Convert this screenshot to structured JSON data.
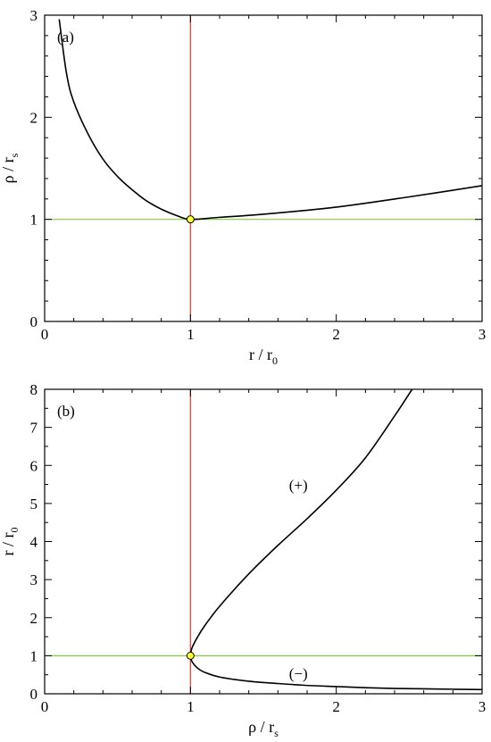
{
  "chart_data": [
    {
      "type": "line",
      "panel_label": "(a)",
      "xlabel": "r / r",
      "xlabel_sub": "0",
      "ylabel": "ρ / r",
      "ylabel_sub": "s",
      "xlim": [
        0,
        3
      ],
      "ylim": [
        0,
        3
      ],
      "xticks": [
        0,
        1,
        2,
        3
      ],
      "yticks": [
        0,
        1,
        2,
        3
      ],
      "colors": {
        "curve": "#000000",
        "horizontal": "#7fd13b",
        "vertical": "#e03c28",
        "marker": "#ffff33"
      },
      "series": [
        {
          "x": [
            0.1,
            0.15,
            0.2,
            0.3,
            0.4,
            0.5,
            0.6,
            0.7,
            0.8,
            0.9,
            1.0,
            1.2,
            1.5,
            2.0,
            2.5,
            3.0
          ],
          "y": [
            2.96,
            2.43,
            2.15,
            1.83,
            1.59,
            1.42,
            1.29,
            1.18,
            1.1,
            1.04,
            1.0,
            1.02,
            1.05,
            1.12,
            1.22,
            1.33
          ]
        }
      ],
      "hlines": [
        1
      ],
      "vlines": [
        1
      ],
      "points": [
        {
          "x": 1,
          "y": 1
        }
      ]
    },
    {
      "type": "line",
      "panel_label": "(b)",
      "xlabel": "ρ / r",
      "xlabel_sub": "s",
      "ylabel": "r / r",
      "ylabel_sub": "0",
      "xlim": [
        0,
        3
      ],
      "ylim": [
        0,
        8
      ],
      "xticks": [
        0,
        1,
        2,
        3
      ],
      "yticks": [
        0,
        1,
        2,
        3,
        4,
        5,
        6,
        7,
        8
      ],
      "colors": {
        "curve": "#000000",
        "horizontal": "#7fd13b",
        "vertical": "#e03c28",
        "marker": "#ffff33"
      },
      "series": [
        {
          "name": "(+)",
          "x": [
            1.0,
            1.01,
            1.05,
            1.1,
            1.2,
            1.4,
            1.6,
            1.8,
            2.0,
            2.2,
            2.4,
            2.52
          ],
          "y": [
            1.0,
            1.2,
            1.5,
            1.8,
            2.3,
            3.15,
            3.9,
            4.6,
            5.35,
            6.2,
            7.3,
            8.0
          ]
        },
        {
          "name": "(−)",
          "x": [
            1.0,
            1.01,
            1.05,
            1.1,
            1.2,
            1.4,
            1.6,
            1.8,
            2.0,
            2.2,
            2.4,
            2.6,
            2.8,
            3.0
          ],
          "y": [
            1.0,
            0.85,
            0.67,
            0.56,
            0.44,
            0.33,
            0.27,
            0.22,
            0.19,
            0.16,
            0.14,
            0.13,
            0.12,
            0.11
          ]
        }
      ],
      "series_labels": [
        {
          "text": "(+)",
          "x": 1.74,
          "y": 5.35
        },
        {
          "text": "(−)",
          "x": 1.74,
          "y": 0.4
        }
      ],
      "hlines": [
        1
      ],
      "vlines": [
        1
      ],
      "points": [
        {
          "x": 1,
          "y": 1
        }
      ]
    }
  ]
}
